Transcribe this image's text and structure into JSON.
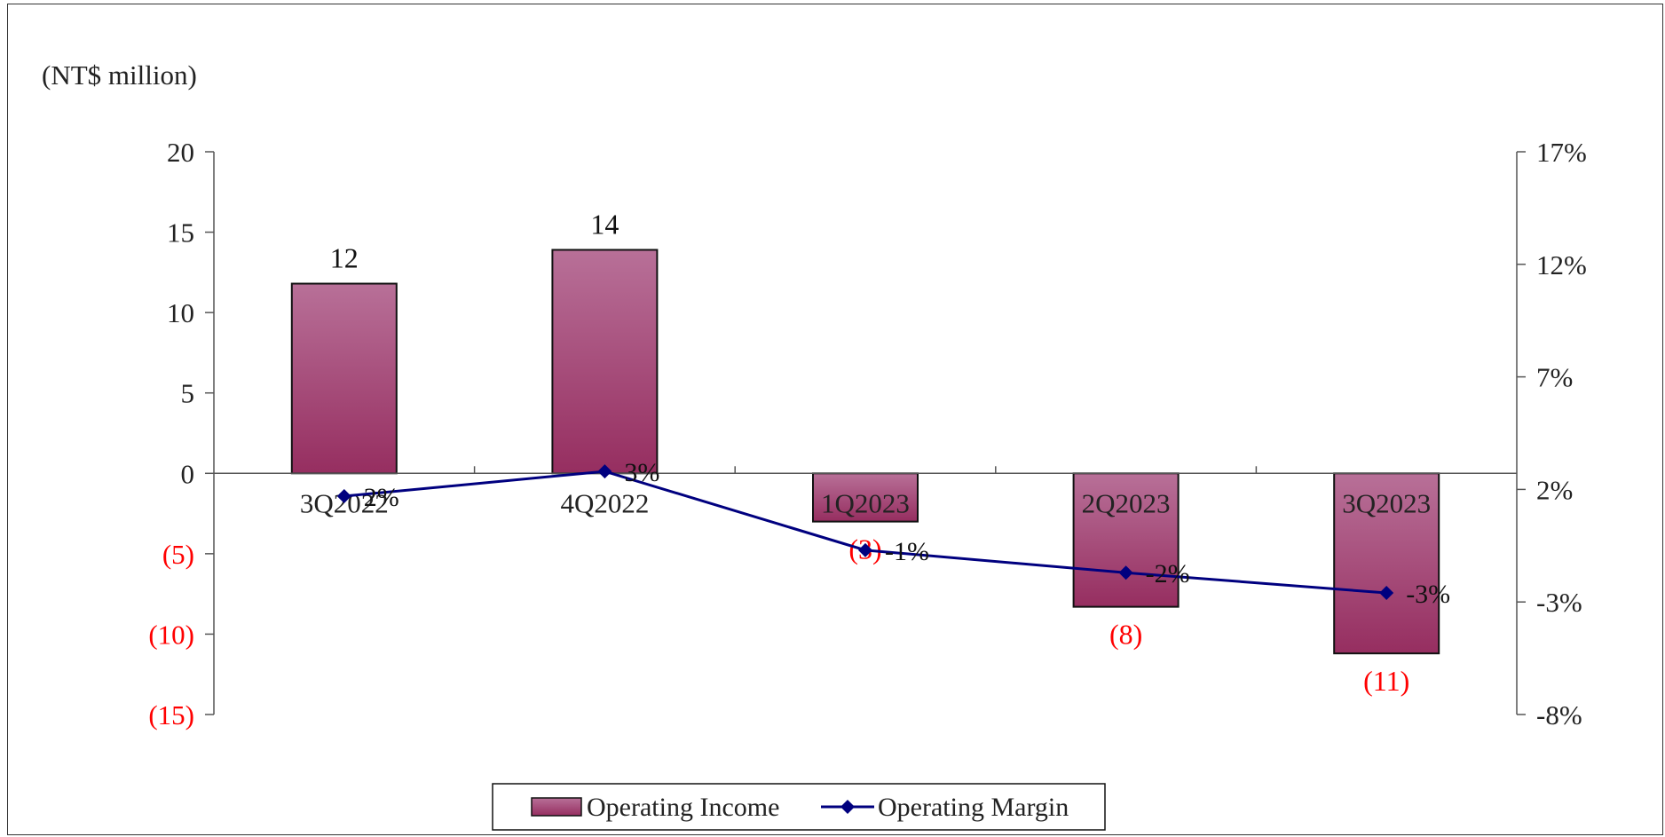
{
  "chart_data": {
    "type": "bar",
    "unit_label": "(NT$ million)",
    "categories": [
      "3Q2022",
      "4Q2022",
      "1Q2023",
      "2Q2023",
      "3Q2023"
    ],
    "series": [
      {
        "name": "Operating Income",
        "type": "bar",
        "axis": "left",
        "values": [
          11.8,
          13.9,
          -3,
          -8.3,
          -11.2
        ],
        "labels": [
          "12",
          "14",
          "(3)",
          "(8)",
          "(11)"
        ],
        "color": "#9b3566"
      },
      {
        "name": "Operating Margin",
        "type": "line",
        "axis": "right",
        "values": [
          1.7,
          2.8,
          -0.7,
          -1.7,
          -2.6
        ],
        "labels": [
          "2%",
          "3%",
          "-1%",
          "-2%",
          "-3%"
        ],
        "color": "#00007f"
      }
    ],
    "y_left": {
      "ylim": [
        -15,
        20
      ],
      "ticks": [
        20,
        15,
        10,
        5,
        0,
        -5,
        -10,
        -15
      ],
      "tick_labels": [
        "20",
        "15",
        "10",
        "5",
        "0",
        "(5)",
        "(10)",
        "(15)"
      ]
    },
    "y_right": {
      "ylim": [
        -8,
        17
      ],
      "ticks": [
        17,
        12,
        7,
        2,
        -3,
        -8
      ],
      "tick_labels": [
        "17%",
        "12%",
        "7%",
        "2%",
        "-3%",
        "-8%"
      ]
    },
    "legend": {
      "placement": "bottom-center"
    },
    "grid": false,
    "colors": {
      "negative": "#ff0000",
      "positive": "#111111"
    }
  }
}
